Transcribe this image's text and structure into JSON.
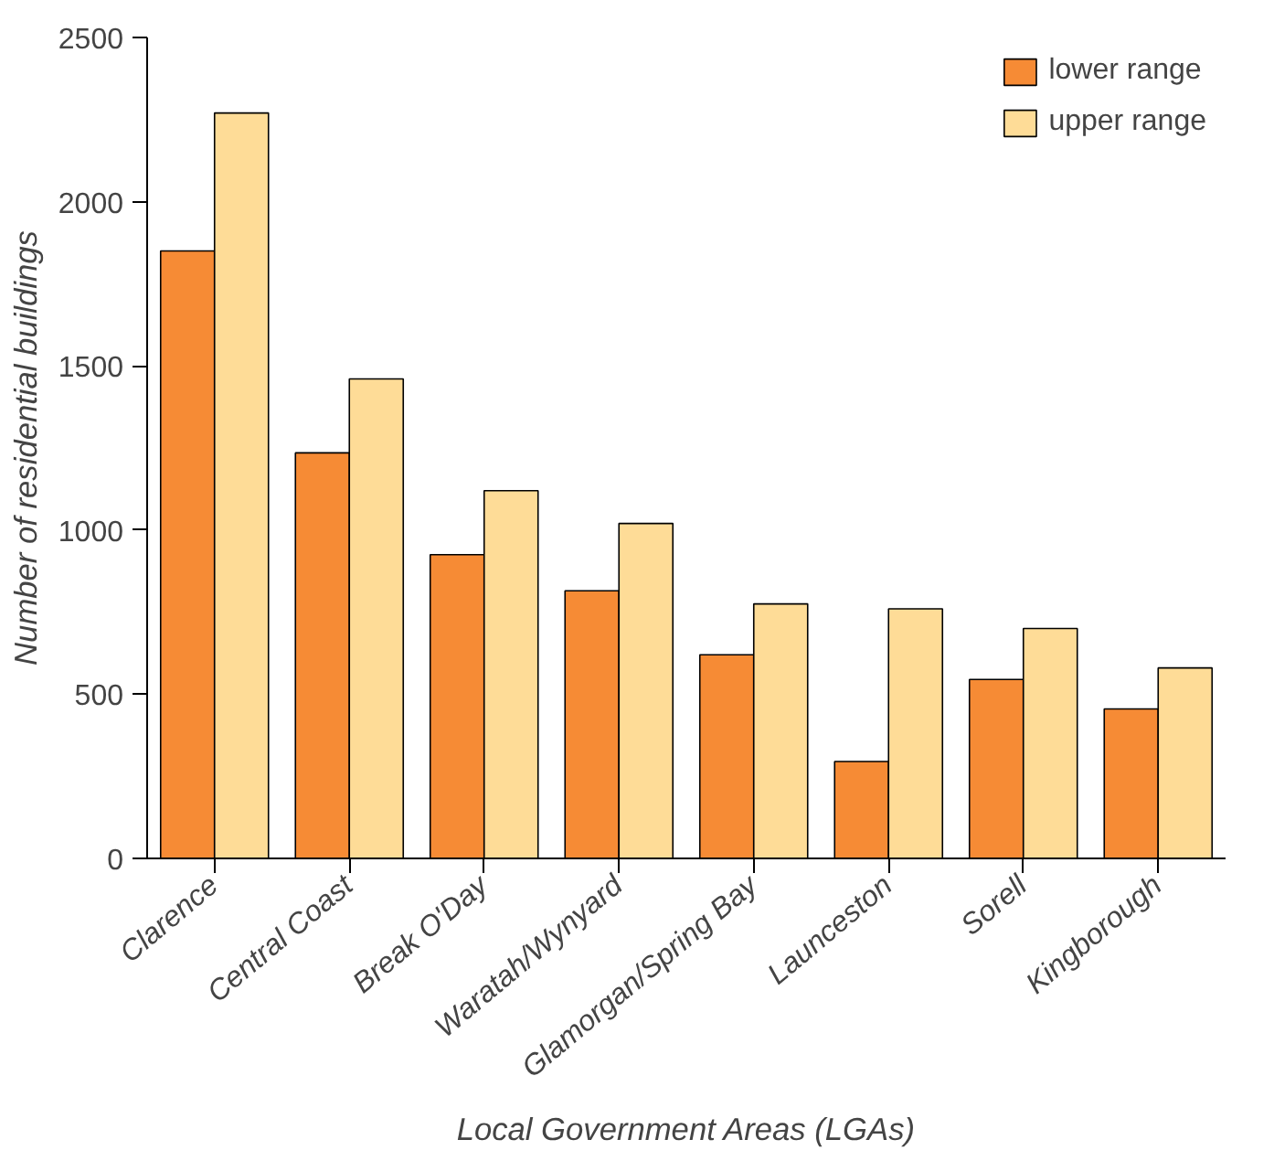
{
  "chart_data": {
    "type": "bar",
    "xlabel": "Local Government Areas (LGAs)",
    "ylabel": "Number of residential buildings",
    "categories": [
      "Clarence",
      "Central Coast",
      "Break O'Day",
      "Waratah/Wynyard",
      "Glamorgan/Spring Bay",
      "Launceston",
      "Sorell",
      "Kingborough"
    ],
    "series": [
      {
        "name": "lower range",
        "color": "#f68b35",
        "values": [
          1850,
          1235,
          925,
          815,
          620,
          295,
          545,
          455
        ]
      },
      {
        "name": "upper range",
        "color": "#fedc97",
        "values": [
          2270,
          1460,
          1120,
          1020,
          775,
          760,
          700,
          580
        ]
      }
    ],
    "ylim": [
      0,
      2500
    ],
    "yticks": [
      0,
      500,
      1000,
      1500,
      2000,
      2500
    ],
    "grid": false,
    "legend": "top right"
  }
}
